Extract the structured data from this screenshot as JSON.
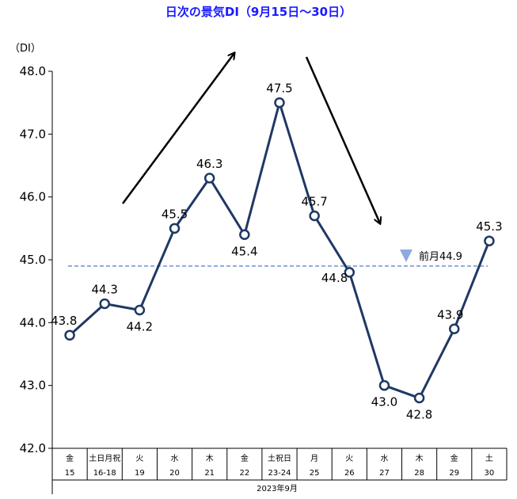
{
  "chart_data": {
    "type": "line",
    "title": "日次の景気DI（9月15日〜30日）",
    "y_unit": "（DI）",
    "ylim": [
      42.0,
      48.0
    ],
    "y_ticks": [
      "42.0",
      "43.0",
      "44.0",
      "45.0",
      "46.0",
      "47.0",
      "48.0"
    ],
    "categories": [
      {
        "day": "金",
        "date": "15"
      },
      {
        "day": "土日月祝",
        "date": "16-18"
      },
      {
        "day": "火",
        "date": "19"
      },
      {
        "day": "水",
        "date": "20"
      },
      {
        "day": "木",
        "date": "21"
      },
      {
        "day": "金",
        "date": "22"
      },
      {
        "day": "土祝日",
        "date": "23-24"
      },
      {
        "day": "月",
        "date": "25"
      },
      {
        "day": "火",
        "date": "26"
      },
      {
        "day": "水",
        "date": "27"
      },
      {
        "day": "木",
        "date": "28"
      },
      {
        "day": "金",
        "date": "29"
      },
      {
        "day": "土",
        "date": "30"
      }
    ],
    "x_group_label": "2023年9月",
    "values": [
      43.8,
      44.3,
      44.2,
      45.5,
      46.3,
      45.4,
      47.5,
      45.7,
      44.8,
      43.0,
      42.8,
      43.9,
      45.3
    ],
    "value_labels": [
      "43.8",
      "44.3",
      "44.2",
      "45.5",
      "46.3",
      "45.4",
      "47.5",
      "45.7",
      "44.8",
      "43.0",
      "42.8",
      "43.9",
      "45.3"
    ],
    "reference_line": {
      "value": 44.9,
      "label": "前月44.9"
    },
    "grid": false,
    "colors": {
      "line": "#1f3864",
      "reference": "#8faadc",
      "marker": "#8faadc",
      "title": "#1a1aff"
    }
  }
}
